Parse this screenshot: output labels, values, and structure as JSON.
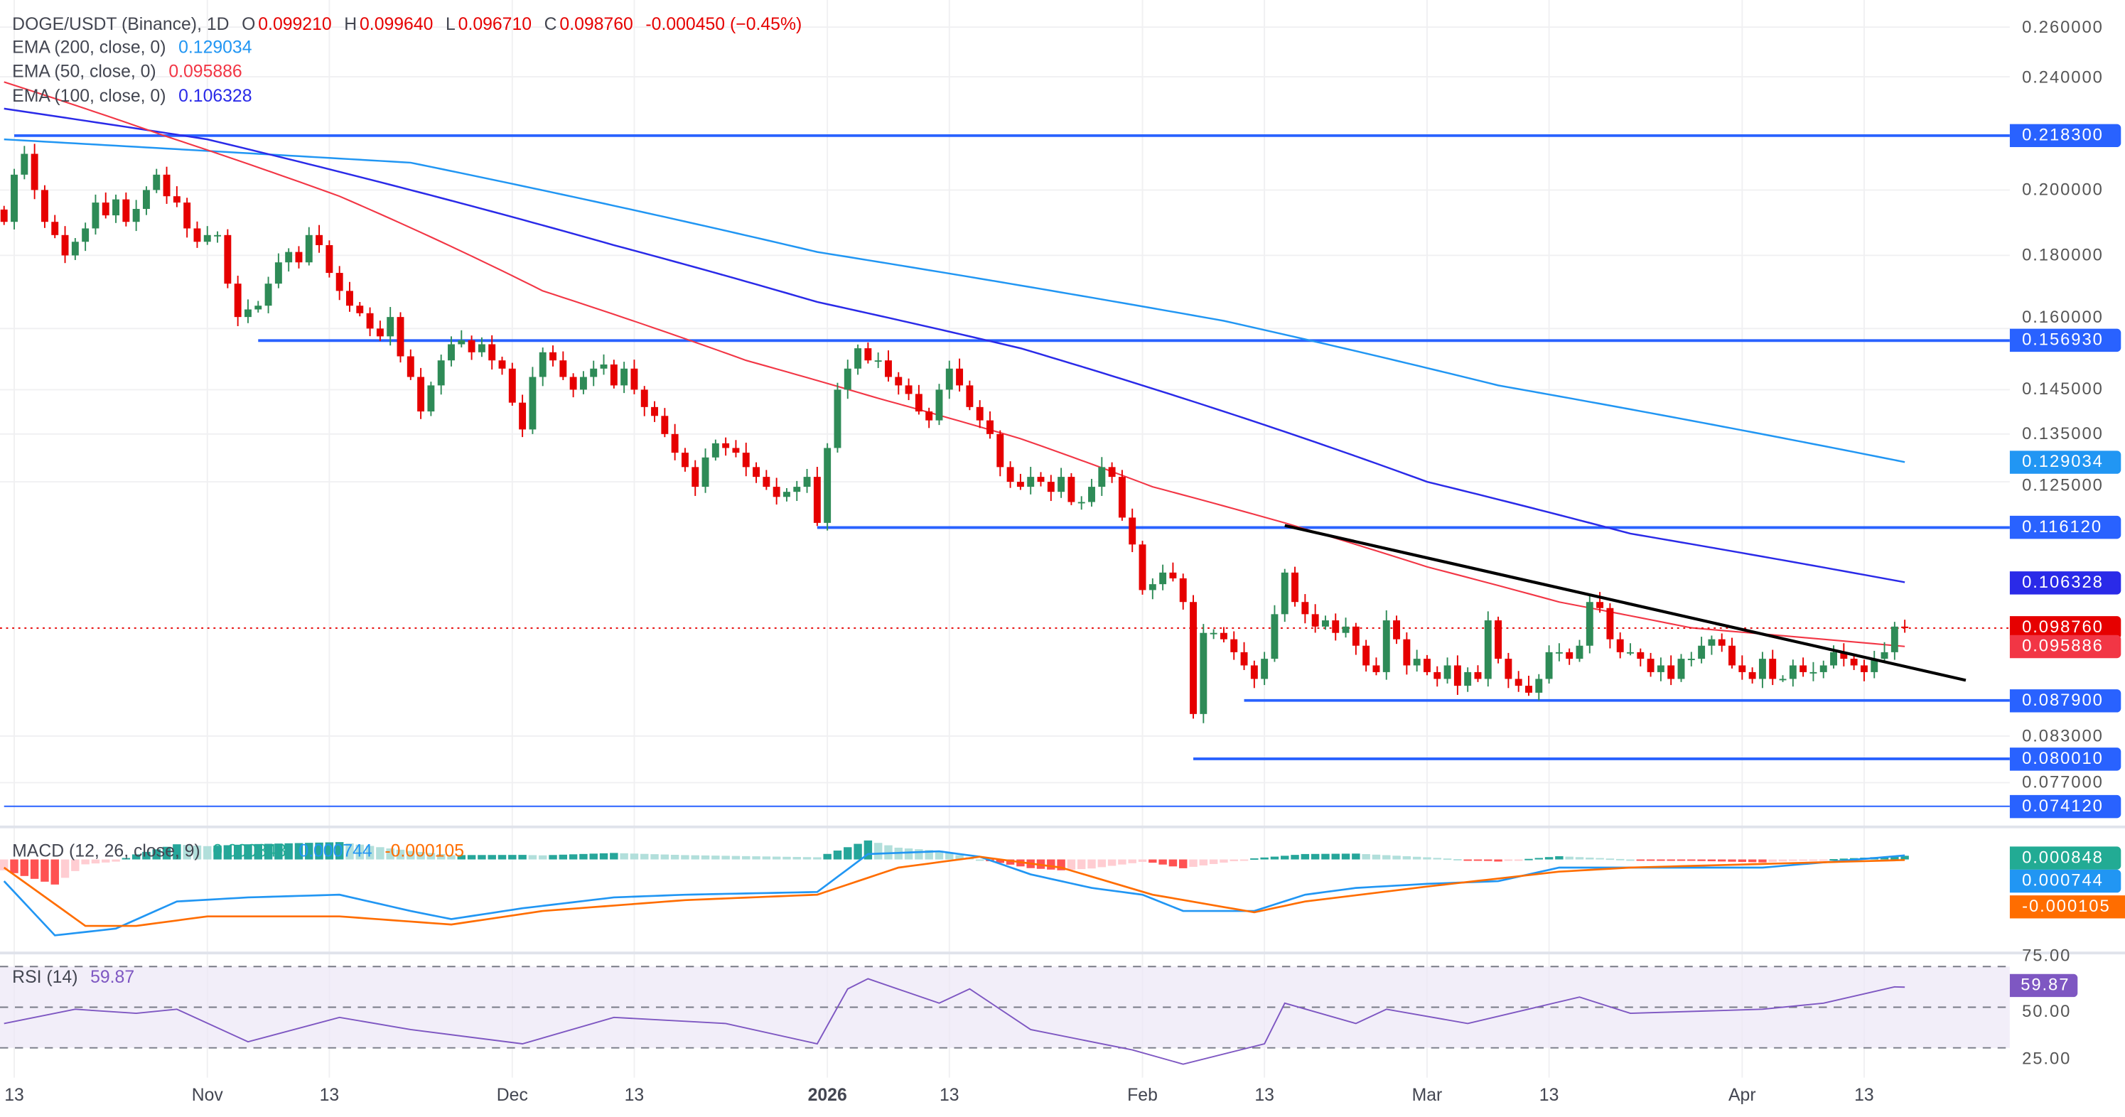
{
  "header": {
    "symbol": "DOGE/USDT (Binance), 1D",
    "o_label": "O",
    "o": "0.099210",
    "h_label": "H",
    "h": "0.099640",
    "l_label": "L",
    "l": "0.096710",
    "c_label": "C",
    "c": "0.098760",
    "change": "-0.000450 (−0.45%)"
  },
  "indicators": {
    "ema200": {
      "label": "EMA (200, close, 0)",
      "value": "0.129034",
      "color": "#2196f3"
    },
    "ema50": {
      "label": "EMA (50, close, 0)",
      "value": "0.095886",
      "color": "#f23645"
    },
    "ema100": {
      "label": "EMA (100, close, 0)",
      "value": "0.106328",
      "color": "#2a2ae8"
    },
    "macd": {
      "label": "MACD (12, 26, close, 9)",
      "hist": "0.000848",
      "macd": "0.000744",
      "signal": "-0.000105"
    },
    "rsi": {
      "label": "RSI (14)",
      "value": "59.87"
    }
  },
  "price_ticks": [
    "0.260000",
    "0.240000",
    "0.200000",
    "0.180000",
    "0.160000",
    "0.145000",
    "0.135000",
    "0.125000",
    "0.083000",
    "0.077000"
  ],
  "rsi_ticks": [
    "75.00",
    "50.00",
    "25.00"
  ],
  "badges": [
    {
      "text": "0.218300",
      "value": 0.2183,
      "color": "#2962ff"
    },
    {
      "text": "0.156930",
      "value": 0.15693,
      "color": "#2962ff"
    },
    {
      "text": "0.129034",
      "value": 0.129034,
      "color": "#2196f3"
    },
    {
      "text": "0.116120",
      "value": 0.11612,
      "color": "#2962ff"
    },
    {
      "text": "0.106328",
      "value": 0.106328,
      "color": "#2a2ae8"
    },
    {
      "text": "0.098760",
      "value": 0.09876,
      "color": "#e60000"
    },
    {
      "text": "0.095886",
      "value": 0.095886,
      "color": "#f23645"
    },
    {
      "text": "0.087900",
      "value": 0.0879,
      "color": "#2962ff"
    },
    {
      "text": "0.080010",
      "value": 0.08001,
      "color": "#2962ff"
    },
    {
      "text": "0.074120",
      "value": 0.07412,
      "color": "#2962ff"
    }
  ],
  "macd_badges": [
    {
      "text": "0.000848",
      "color": "#22ab94"
    },
    {
      "text": "0.000744",
      "color": "#2196f3"
    },
    {
      "text": "-0.000105",
      "color": "#ff6d00"
    }
  ],
  "rsi_badge": {
    "text": "59.87",
    "color": "#7e57c2"
  },
  "x_labels": [
    {
      "text": "13",
      "day": 1
    },
    {
      "text": "Nov",
      "day": 20
    },
    {
      "text": "13",
      "day": 32
    },
    {
      "text": "Dec",
      "day": 50
    },
    {
      "text": "13",
      "day": 62
    },
    {
      "text": "2026",
      "day": 81,
      "bold": true
    },
    {
      "text": "13",
      "day": 93
    },
    {
      "text": "Feb",
      "day": 112
    },
    {
      "text": "13",
      "day": 124
    },
    {
      "text": "Mar",
      "day": 140
    },
    {
      "text": "13",
      "day": 152
    },
    {
      "text": "Apr",
      "day": 171
    },
    {
      "text": "13",
      "day": 183
    }
  ],
  "chart_data": {
    "type": "candlestick",
    "title": "DOGE/USDT (Binance), 1D",
    "x_start": "2025-10-12",
    "y_scale": "log",
    "ylim": [
      0.0741,
      0.26
    ],
    "colors": {
      "up": "#2e8b57",
      "down": "#e60000"
    },
    "closes": [
      0.19,
      0.205,
      0.212,
      0.2,
      0.19,
      0.186,
      0.18,
      0.184,
      0.188,
      0.196,
      0.192,
      0.197,
      0.19,
      0.194,
      0.2,
      0.205,
      0.198,
      0.196,
      0.188,
      0.184,
      0.186,
      0.186,
      0.172,
      0.163,
      0.165,
      0.166,
      0.172,
      0.178,
      0.181,
      0.178,
      0.186,
      0.183,
      0.175,
      0.17,
      0.166,
      0.164,
      0.16,
      0.158,
      0.163,
      0.153,
      0.148,
      0.14,
      0.146,
      0.152,
      0.156,
      0.157,
      0.154,
      0.156,
      0.152,
      0.15,
      0.142,
      0.136,
      0.148,
      0.154,
      0.152,
      0.148,
      0.145,
      0.148,
      0.15,
      0.151,
      0.146,
      0.15,
      0.145,
      0.141,
      0.139,
      0.135,
      0.131,
      0.128,
      0.124,
      0.13,
      0.133,
      0.132,
      0.131,
      0.128,
      0.126,
      0.124,
      0.122,
      0.123,
      0.124,
      0.126,
      0.117,
      0.132,
      0.145,
      0.15,
      0.155,
      0.152,
      0.152,
      0.148,
      0.146,
      0.144,
      0.14,
      0.138,
      0.145,
      0.15,
      0.146,
      0.141,
      0.138,
      0.135,
      0.128,
      0.125,
      0.124,
      0.126,
      0.125,
      0.123,
      0.126,
      0.121,
      0.121,
      0.124,
      0.128,
      0.126,
      0.118,
      0.113,
      0.105,
      0.106,
      0.108,
      0.107,
      0.103,
      0.086,
      0.098,
      0.098,
      0.097,
      0.095,
      0.093,
      0.091,
      0.094,
      0.101,
      0.108,
      0.103,
      0.101,
      0.099,
      0.1,
      0.098,
      0.099,
      0.096,
      0.093,
      0.092,
      0.1,
      0.097,
      0.093,
      0.094,
      0.092,
      0.091,
      0.093,
      0.09,
      0.092,
      0.091,
      0.1,
      0.094,
      0.091,
      0.09,
      0.089,
      0.091,
      0.095,
      0.095,
      0.094,
      0.096,
      0.103,
      0.102,
      0.097,
      0.095,
      0.095,
      0.094,
      0.092,
      0.093,
      0.091,
      0.094,
      0.094,
      0.096,
      0.097,
      0.096,
      0.093,
      0.092,
      0.091,
      0.094,
      0.091,
      0.091,
      0.093,
      0.092,
      0.092,
      0.093,
      0.095,
      0.094,
      0.093,
      0.092,
      0.094,
      0.095,
      0.099,
      0.09876
    ],
    "ema200": [
      [
        0,
        0.217
      ],
      [
        40,
        0.209
      ],
      [
        80,
        0.181
      ],
      [
        120,
        0.162
      ],
      [
        147,
        0.146
      ],
      [
        187,
        0.129034
      ]
    ],
    "ema100": [
      [
        0,
        0.228
      ],
      [
        20,
        0.217
      ],
      [
        40,
        0.2
      ],
      [
        60,
        0.183
      ],
      [
        80,
        0.167
      ],
      [
        100,
        0.155
      ],
      [
        120,
        0.14
      ],
      [
        140,
        0.125
      ],
      [
        160,
        0.115
      ],
      [
        187,
        0.106328
      ]
    ],
    "ema50": [
      [
        0,
        0.238
      ],
      [
        16,
        0.218
      ],
      [
        33,
        0.198
      ],
      [
        53,
        0.17
      ],
      [
        73,
        0.152
      ],
      [
        86,
        0.143
      ],
      [
        100,
        0.134
      ],
      [
        113,
        0.124
      ],
      [
        126,
        0.117
      ],
      [
        140,
        0.109
      ],
      [
        153,
        0.103
      ],
      [
        166,
        0.0988
      ],
      [
        187,
        0.095886
      ]
    ],
    "levels": [
      {
        "value": 0.2183,
        "from_day": 1
      },
      {
        "value": 0.15693,
        "from_day": 25
      },
      {
        "value": 0.11612,
        "from_day": 80
      },
      {
        "value": 0.0879,
        "from_day": 122
      },
      {
        "value": 0.08001,
        "from_day": 117
      },
      {
        "value": 0.07412,
        "from_day": 0
      }
    ],
    "trendline": [
      [
        126,
        0.1165
      ],
      [
        193,
        0.0908
      ]
    ],
    "last_price": 0.09876,
    "macd_line": [
      [
        0,
        -0.004
      ],
      [
        5,
        -0.014
      ],
      [
        11,
        -0.01275
      ],
      [
        17,
        -0.00775
      ],
      [
        24,
        -0.007
      ],
      [
        33,
        -0.0065
      ],
      [
        40,
        -0.0095
      ],
      [
        44,
        -0.011
      ],
      [
        51,
        -0.009
      ],
      [
        60,
        -0.007
      ],
      [
        67,
        -0.0065
      ],
      [
        80,
        -0.006
      ],
      [
        85,
        0.001
      ],
      [
        92,
        0.0015
      ],
      [
        96,
        0.0005
      ],
      [
        101,
        -0.00275
      ],
      [
        107,
        -0.00525
      ],
      [
        112,
        -0.0065
      ],
      [
        116,
        -0.0095
      ],
      [
        123,
        -0.0095
      ],
      [
        128,
        -0.0065
      ],
      [
        133,
        -0.00525
      ],
      [
        140,
        -0.0045
      ],
      [
        147,
        -0.004
      ],
      [
        153,
        -0.0015
      ],
      [
        160,
        -0.0015
      ],
      [
        173,
        -0.0015
      ],
      [
        187,
        0.000744
      ]
    ],
    "signal_line": [
      [
        0,
        -0.0015
      ],
      [
        8,
        -0.01225
      ],
      [
        13,
        -0.01225
      ],
      [
        20,
        -0.0105
      ],
      [
        33,
        -0.0105
      ],
      [
        44,
        -0.012
      ],
      [
        53,
        -0.0095
      ],
      [
        67,
        -0.0075
      ],
      [
        80,
        -0.0065
      ],
      [
        88,
        -0.0015
      ],
      [
        96,
        0.0005
      ],
      [
        104,
        -0.0015
      ],
      [
        113,
        -0.0065
      ],
      [
        123,
        -0.00975
      ],
      [
        128,
        -0.00775
      ],
      [
        140,
        -0.005
      ],
      [
        153,
        -0.00225
      ],
      [
        160,
        -0.0015
      ],
      [
        187,
        -0.000105
      ]
    ],
    "rsi": [
      [
        0,
        42
      ],
      [
        7,
        49
      ],
      [
        13,
        47
      ],
      [
        17,
        49
      ],
      [
        24,
        33
      ],
      [
        33,
        45
      ],
      [
        40,
        39
      ],
      [
        51,
        32
      ],
      [
        60,
        45
      ],
      [
        71,
        42
      ],
      [
        80,
        32
      ],
      [
        83,
        59
      ],
      [
        85,
        64
      ],
      [
        92,
        52
      ],
      [
        95,
        59
      ],
      [
        101,
        39
      ],
      [
        111,
        29
      ],
      [
        116,
        22
      ],
      [
        124,
        32
      ],
      [
        126,
        52
      ],
      [
        133,
        42
      ],
      [
        136,
        49
      ],
      [
        144,
        42
      ],
      [
        155,
        55
      ],
      [
        160,
        47
      ],
      [
        173,
        49
      ],
      [
        179,
        52
      ],
      [
        186,
        60
      ],
      [
        187,
        59.87
      ]
    ],
    "rsi_bands": [
      70,
      50,
      30
    ]
  }
}
